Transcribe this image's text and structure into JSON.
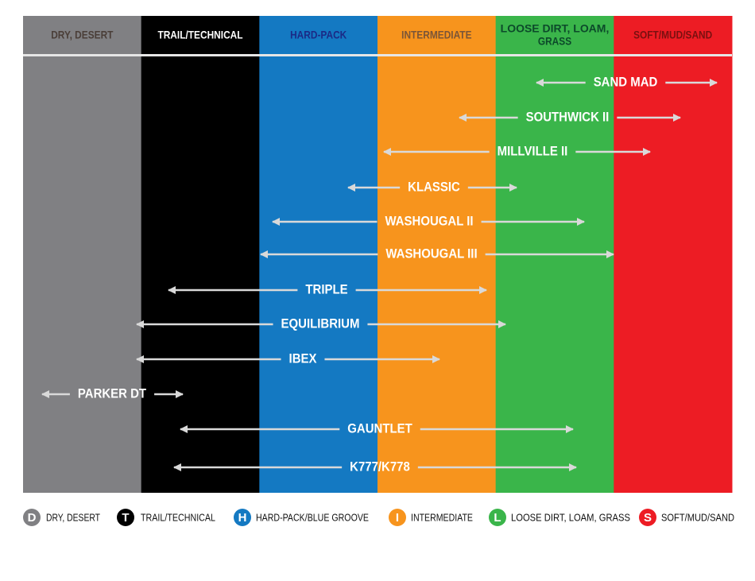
{
  "columns": [
    {
      "label": [
        "DRY, DESERT"
      ],
      "color": "#808083",
      "text_color": "#4a3e38"
    },
    {
      "label": [
        "TRAIL/TECHNICAL"
      ],
      "color": "#000000",
      "text_color": "#ffffff"
    },
    {
      "label": [
        "HARD-PACK"
      ],
      "color": "#1479c2",
      "text_color": "#1b2a86"
    },
    {
      "label": [
        "INTERMEDIATE"
      ],
      "color": "#f7941d",
      "text_color": "#7a5538"
    },
    {
      "label": [
        "LOOSE DIRT, LOAM,",
        "GRASS"
      ],
      "color": "#3ab54a",
      "text_color": "#0c4a2a"
    },
    {
      "label": [
        "SOFT/MUD/SAND"
      ],
      "color": "#ed1c24",
      "text_color": "#7a1010"
    }
  ],
  "tires": [
    {
      "name": "SAND MAD"
    },
    {
      "name": "SOUTHWICK II"
    },
    {
      "name": "MILLVILLE II"
    },
    {
      "name": "KLASSIC"
    },
    {
      "name": "WASHOUGAL II"
    },
    {
      "name": "WASHOUGAL III"
    },
    {
      "name": "TRIPLE"
    },
    {
      "name": "EQUILIBRIUM"
    },
    {
      "name": "IBEX"
    },
    {
      "name": "PARKER DT"
    },
    {
      "name": "GAUNTLET"
    },
    {
      "name": "K777/K778"
    }
  ],
  "legend": [
    {
      "letter": "D",
      "label": "DRY, DESERT",
      "color": "#808083"
    },
    {
      "letter": "T",
      "label": "TRAIL/TECHNICAL",
      "color": "#000000"
    },
    {
      "letter": "H",
      "label": "HARD-PACK/BLUE GROOVE",
      "color": "#1479c2"
    },
    {
      "letter": "I",
      "label": "INTERMEDIATE",
      "color": "#f7941d"
    },
    {
      "letter": "L",
      "label": "LOOSE DIRT, LOAM, GRASS",
      "color": "#3ab54a"
    },
    {
      "letter": "S",
      "label": "SOFT/MUD/SAND",
      "color": "#ed1c24"
    }
  ]
}
